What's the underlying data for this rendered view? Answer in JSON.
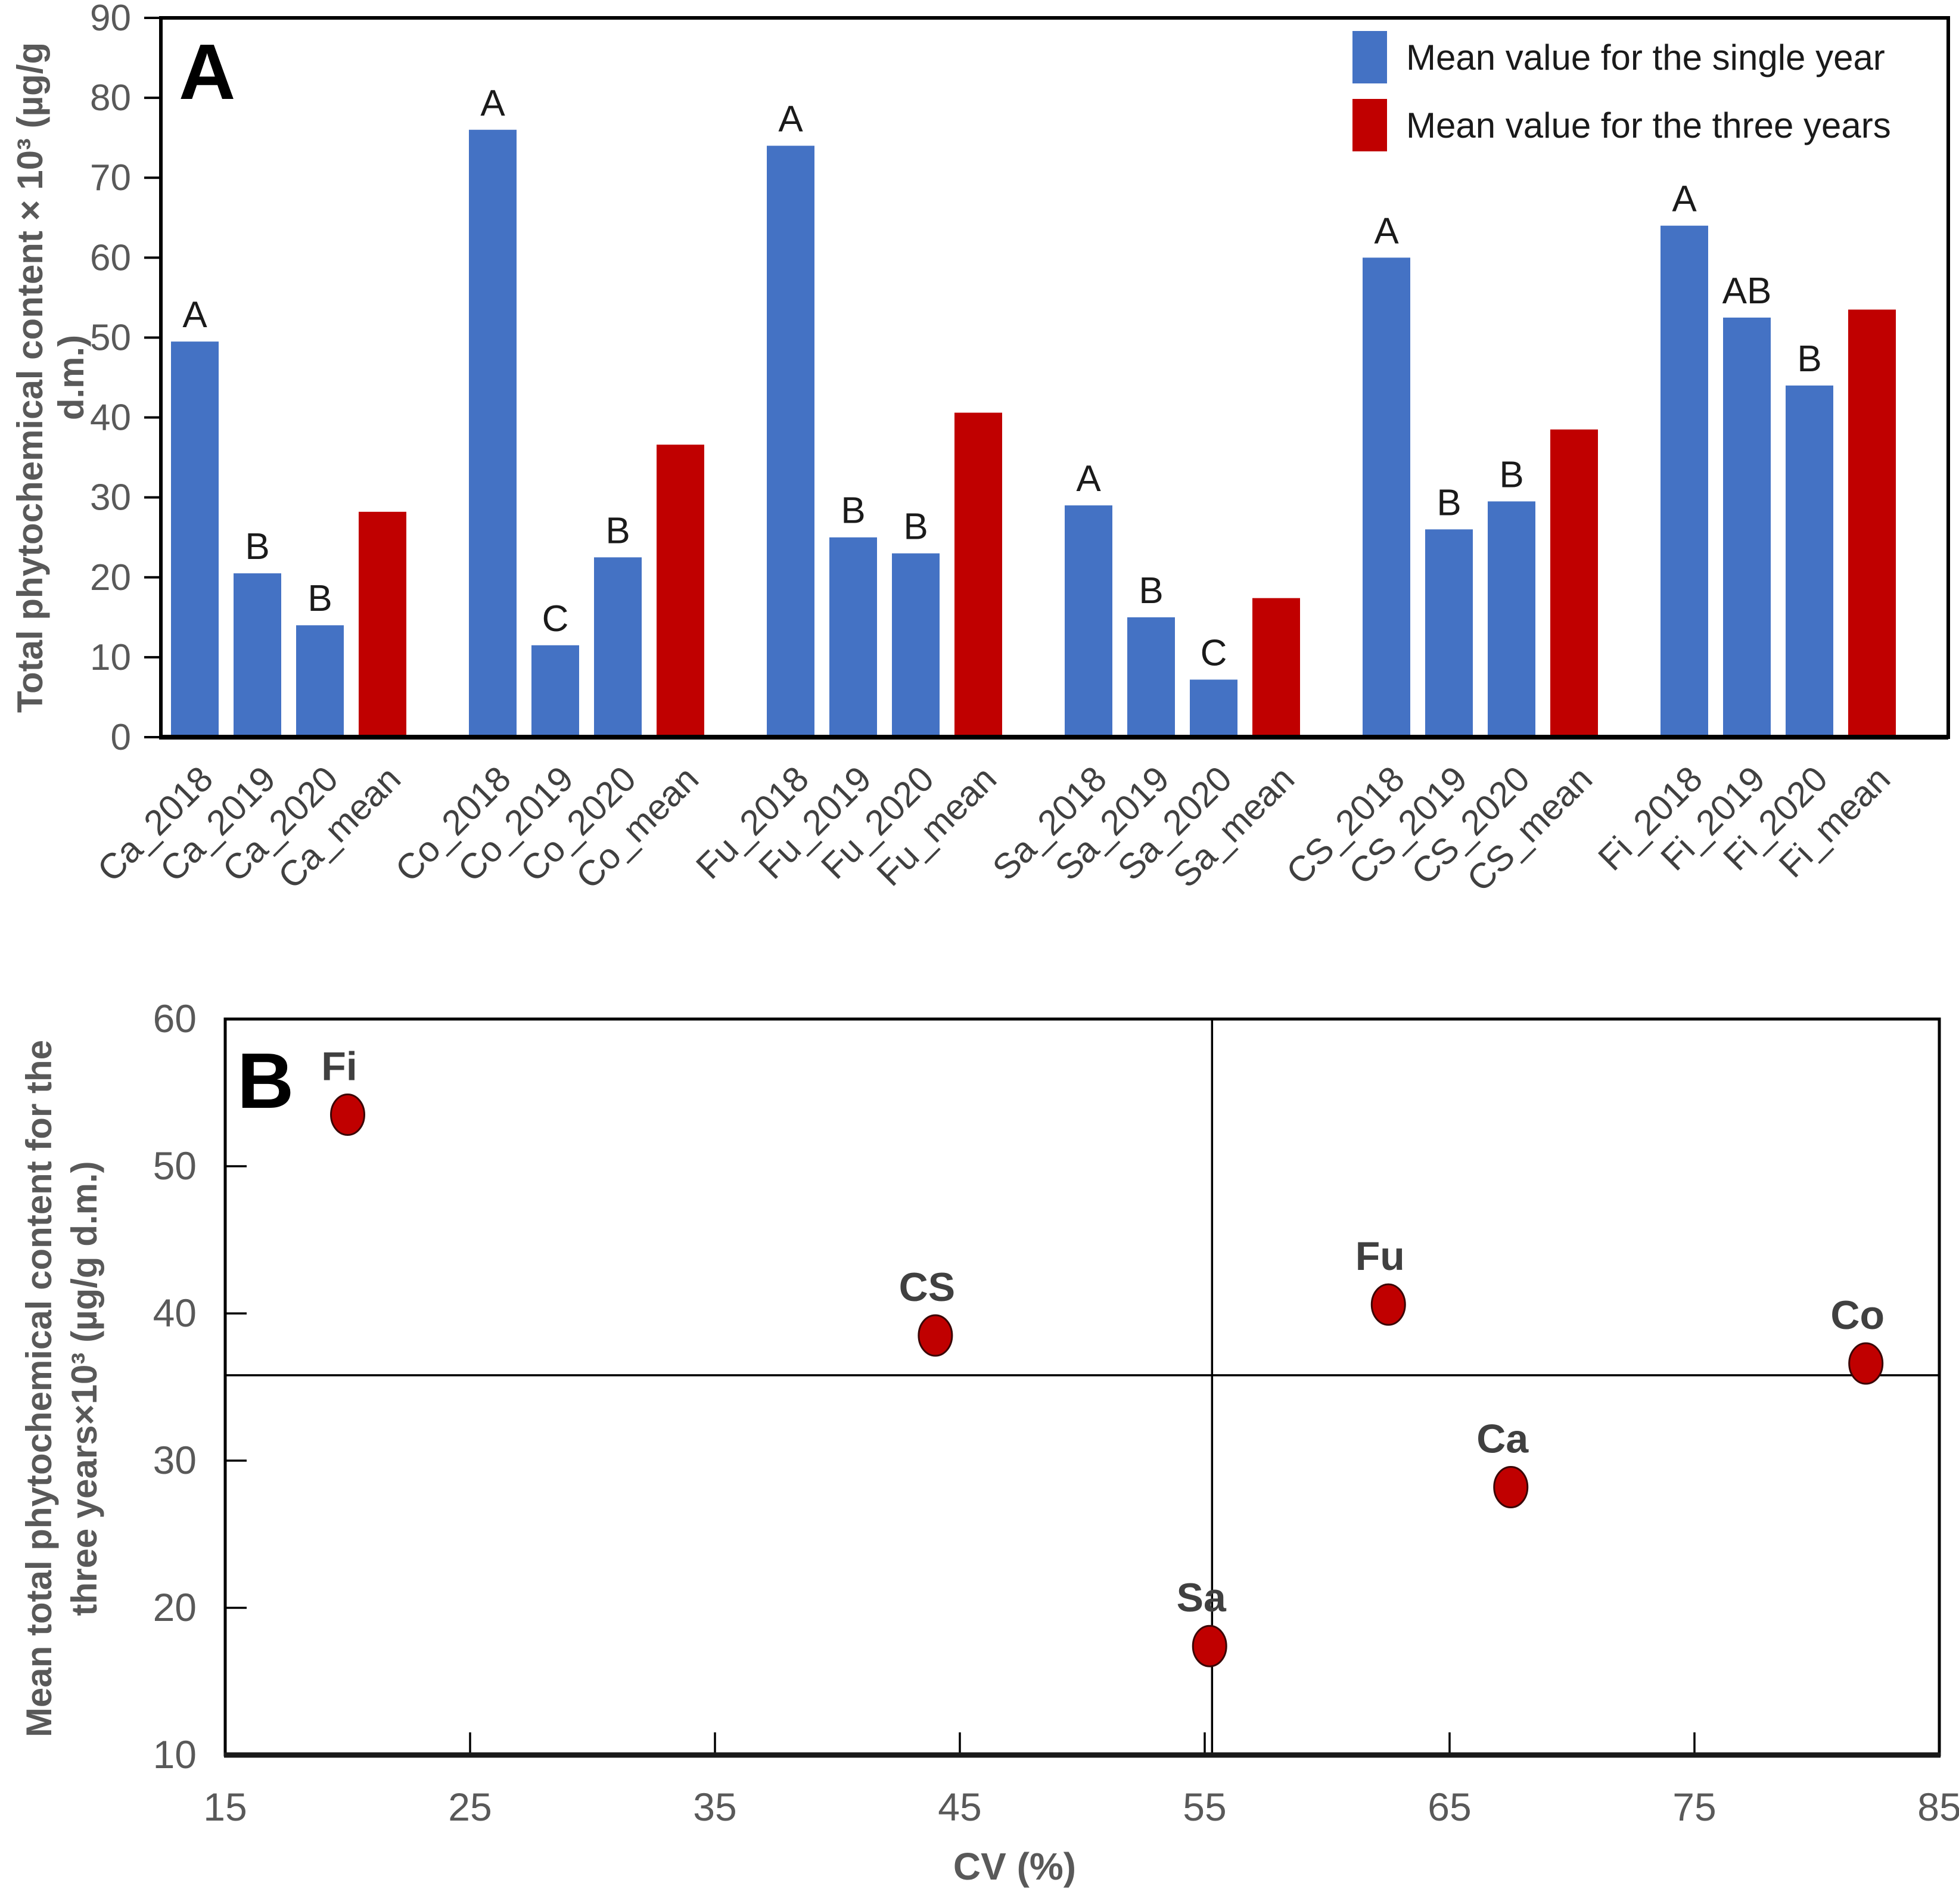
{
  "chart_data": [
    {
      "type": "bar",
      "panel_label": "A",
      "ylabel": "Total phytochemical content × 10³ (µg/g d.m.)",
      "ylim": [
        0,
        90
      ],
      "yticks": [
        0,
        10,
        20,
        30,
        40,
        50,
        60,
        70,
        80,
        90
      ],
      "grid": false,
      "legend_position": "top-right",
      "legend": [
        {
          "label": "Mean value for the single year",
          "color": "#4472C4"
        },
        {
          "label": "Mean value for the three years",
          "color": "#C00000"
        }
      ],
      "colors": {
        "single": "#4472C4",
        "mean": "#C00000"
      },
      "bars": [
        {
          "label": "Ca_2018",
          "value": 49.5,
          "letter": "A",
          "kind": "single"
        },
        {
          "label": "Ca_2019",
          "value": 20.5,
          "letter": "B",
          "kind": "single"
        },
        {
          "label": "Ca_2020",
          "value": 14.0,
          "letter": "B",
          "kind": "single"
        },
        {
          "label": "Ca_mean",
          "value": 28.2,
          "letter": "",
          "kind": "mean"
        },
        {
          "label": "Co_2018",
          "value": 76.0,
          "letter": "A",
          "kind": "single"
        },
        {
          "label": "Co_2019",
          "value": 11.5,
          "letter": "C",
          "kind": "single"
        },
        {
          "label": "Co_2020",
          "value": 22.5,
          "letter": "B",
          "kind": "single"
        },
        {
          "label": "Co_mean",
          "value": 36.6,
          "letter": "",
          "kind": "mean"
        },
        {
          "label": "Fu_2018",
          "value": 74.0,
          "letter": "A",
          "kind": "single"
        },
        {
          "label": "Fu_2019",
          "value": 25.0,
          "letter": "B",
          "kind": "single"
        },
        {
          "label": "Fu_2020",
          "value": 23.0,
          "letter": "B",
          "kind": "single"
        },
        {
          "label": "Fu_mean",
          "value": 40.6,
          "letter": "",
          "kind": "mean"
        },
        {
          "label": "Sa_2018",
          "value": 29.0,
          "letter": "A",
          "kind": "single"
        },
        {
          "label": "Sa_2019",
          "value": 15.0,
          "letter": "B",
          "kind": "single"
        },
        {
          "label": "Sa_2020",
          "value": 7.2,
          "letter": "C",
          "kind": "single"
        },
        {
          "label": "Sa_mean",
          "value": 17.4,
          "letter": "",
          "kind": "mean"
        },
        {
          "label": "CS_2018",
          "value": 60.0,
          "letter": "A",
          "kind": "single"
        },
        {
          "label": "CS_2019",
          "value": 26.0,
          "letter": "B",
          "kind": "single"
        },
        {
          "label": "CS_2020",
          "value": 29.5,
          "letter": "B",
          "kind": "single"
        },
        {
          "label": "CS_mean",
          "value": 38.5,
          "letter": "",
          "kind": "mean"
        },
        {
          "label": "Fi_2018",
          "value": 64.0,
          "letter": "A",
          "kind": "single"
        },
        {
          "label": "Fi_2019",
          "value": 52.5,
          "letter": "AB",
          "kind": "single"
        },
        {
          "label": "Fi_2020",
          "value": 44.0,
          "letter": "B",
          "kind": "single"
        },
        {
          "label": "Fi_mean",
          "value": 53.5,
          "letter": "",
          "kind": "mean"
        }
      ]
    },
    {
      "type": "scatter",
      "panel_label": "B",
      "xlabel": "CV (%)",
      "ylabel_lines": [
        "Mean total phytochemical content for the",
        "three years×10³ (µg/g d.m.)"
      ],
      "xlim": [
        15,
        85
      ],
      "ylim": [
        10,
        60
      ],
      "xticks": [
        15,
        25,
        35,
        45,
        55,
        65,
        75,
        85
      ],
      "yticks": [
        10,
        20,
        30,
        40,
        50,
        60
      ],
      "grid": false,
      "point_color": "#C00000",
      "reference_lines": {
        "vertical_x": 55.3,
        "horizontal_y": 35.8
      },
      "points": [
        {
          "label": "Fi",
          "x": 20.0,
          "y": 53.5
        },
        {
          "label": "CS",
          "x": 44.0,
          "y": 38.5
        },
        {
          "label": "Fu",
          "x": 62.5,
          "y": 40.6
        },
        {
          "label": "Co",
          "x": 82.0,
          "y": 36.6
        },
        {
          "label": "Ca",
          "x": 67.5,
          "y": 28.2
        },
        {
          "label": "Sa",
          "x": 55.2,
          "y": 17.4
        }
      ]
    }
  ]
}
